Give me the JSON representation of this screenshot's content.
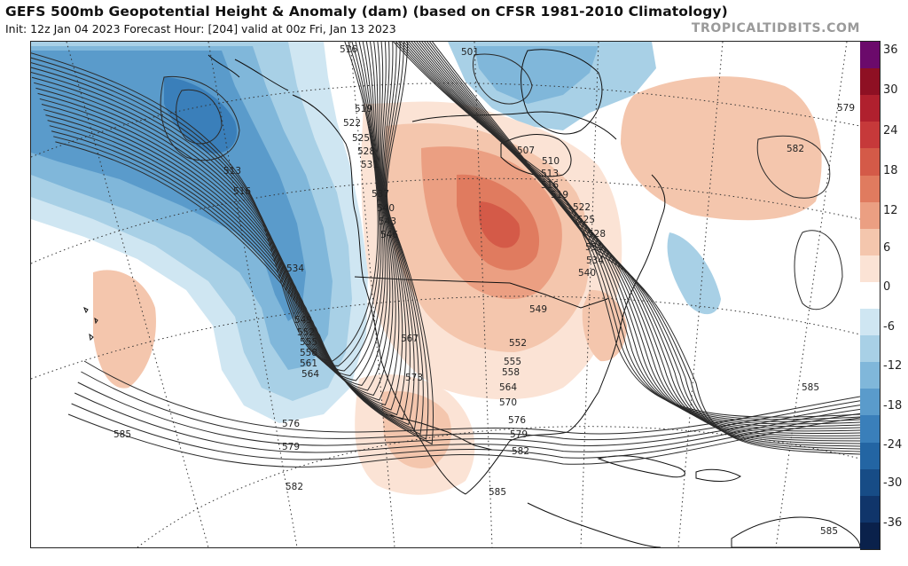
{
  "header": {
    "title": "GEFS 500mb Geopotential Height & Anomaly (dam) (based on CFSR 1981-2010 Climatology)",
    "subtitle": "Init: 12z Jan 04 2023   Forecast Hour: [204]   valid at 00z Fri, Jan 13 2023",
    "credit": "TROPICALTIDBITS.COM"
  },
  "colorbar": {
    "ticks": [
      "36",
      "30",
      "24",
      "18",
      "12",
      "6",
      "0",
      "-6",
      "-12",
      "-18",
      "-24",
      "-30",
      "-36"
    ],
    "colors": [
      "#6b0a6b",
      "#8e1023",
      "#b0202e",
      "#c6393a",
      "#d45a48",
      "#e07b5f",
      "#eb9f82",
      "#f4c6ad",
      "#fbe3d5",
      "#ffffff",
      "#cfe6f2",
      "#a8d0e6",
      "#80b7da",
      "#5a9bcb",
      "#3a7fba",
      "#2365a3",
      "#174c86",
      "#10356a",
      "#0a214b"
    ]
  },
  "contour_labels": [
    {
      "text": "516"
    },
    {
      "text": "501"
    },
    {
      "text": "519"
    },
    {
      "text": "522"
    },
    {
      "text": "525"
    },
    {
      "text": "528"
    },
    {
      "text": "531"
    },
    {
      "text": "537"
    },
    {
      "text": "540"
    },
    {
      "text": "543"
    },
    {
      "text": "546"
    },
    {
      "text": "513"
    },
    {
      "text": "516"
    },
    {
      "text": "534"
    },
    {
      "text": "549"
    },
    {
      "text": "552"
    },
    {
      "text": "555"
    },
    {
      "text": "558"
    },
    {
      "text": "561"
    },
    {
      "text": "564"
    },
    {
      "text": "576"
    },
    {
      "text": "579"
    },
    {
      "text": "585"
    },
    {
      "text": "582"
    },
    {
      "text": "567"
    },
    {
      "text": "573"
    },
    {
      "text": "552"
    },
    {
      "text": "555"
    },
    {
      "text": "558"
    },
    {
      "text": "564"
    },
    {
      "text": "570"
    },
    {
      "text": "576"
    },
    {
      "text": "579"
    },
    {
      "text": "582"
    },
    {
      "text": "585"
    },
    {
      "text": "507"
    },
    {
      "text": "510"
    },
    {
      "text": "513"
    },
    {
      "text": "516"
    },
    {
      "text": "519"
    },
    {
      "text": "522"
    },
    {
      "text": "525"
    },
    {
      "text": "528"
    },
    {
      "text": "531"
    },
    {
      "text": "534"
    },
    {
      "text": "540"
    },
    {
      "text": "549"
    },
    {
      "text": "579"
    },
    {
      "text": "582"
    },
    {
      "text": "585"
    },
    {
      "text": "585"
    }
  ]
}
